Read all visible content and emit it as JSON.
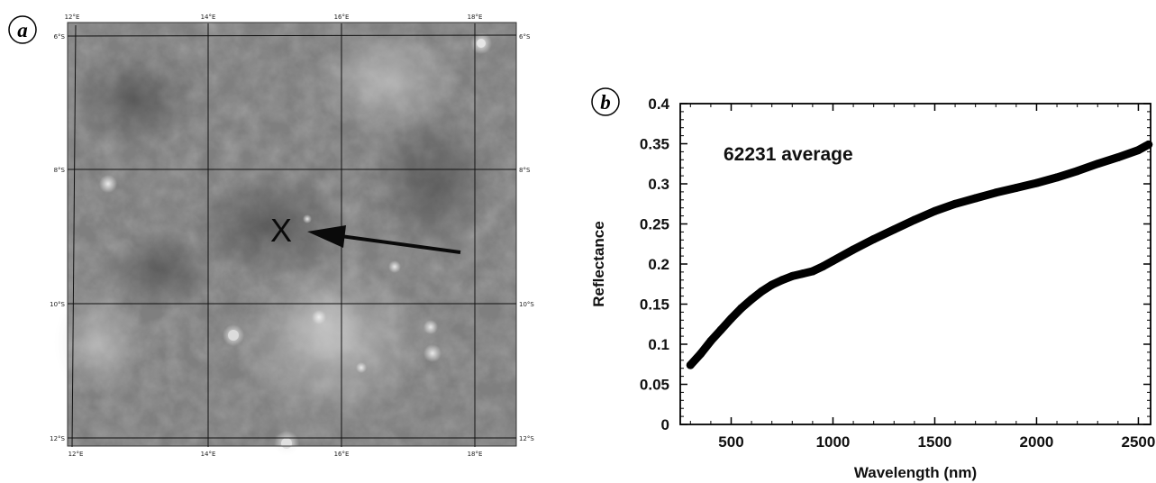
{
  "panel_a": {
    "letter": "a",
    "grid": {
      "lon_labels": [
        "12°E",
        "14°E",
        "16°E",
        "18°E"
      ],
      "lat_labels": [
        "6°S",
        "8°S",
        "10°S",
        "12°S"
      ]
    },
    "marker": "X"
  },
  "panel_b": {
    "letter": "b"
  },
  "chart_data": {
    "type": "line",
    "annotation": "62231 average",
    "xlabel": "Wavelength (nm)",
    "ylabel": "Reflectance",
    "xlim": [
      250,
      2560
    ],
    "ylim": [
      0,
      0.4
    ],
    "xticks": [
      500,
      1000,
      1500,
      2000,
      2500
    ],
    "yticks": [
      0,
      0.05,
      0.1,
      0.15,
      0.2,
      0.25,
      0.3,
      0.35,
      0.4
    ],
    "xtick_labels": [
      "500",
      "1000",
      "1500",
      "2000",
      "2500"
    ],
    "ytick_labels": [
      "0",
      "0.05",
      "0.1",
      "0.15",
      "0.2",
      "0.25",
      "0.3",
      "0.35",
      "0.4"
    ],
    "series": [
      {
        "color": "#000000",
        "x": [
          300,
          350,
          400,
          450,
          500,
          550,
          600,
          650,
          700,
          750,
          800,
          850,
          900,
          950,
          1000,
          1100,
          1200,
          1300,
          1400,
          1500,
          1600,
          1700,
          1800,
          1900,
          2000,
          2100,
          2200,
          2300,
          2400,
          2500,
          2550
        ],
        "y": [
          0.074,
          0.088,
          0.104,
          0.118,
          0.132,
          0.145,
          0.156,
          0.166,
          0.174,
          0.18,
          0.185,
          0.188,
          0.191,
          0.197,
          0.204,
          0.218,
          0.231,
          0.243,
          0.255,
          0.266,
          0.275,
          0.282,
          0.289,
          0.295,
          0.301,
          0.308,
          0.316,
          0.325,
          0.333,
          0.342,
          0.349
        ]
      }
    ]
  }
}
